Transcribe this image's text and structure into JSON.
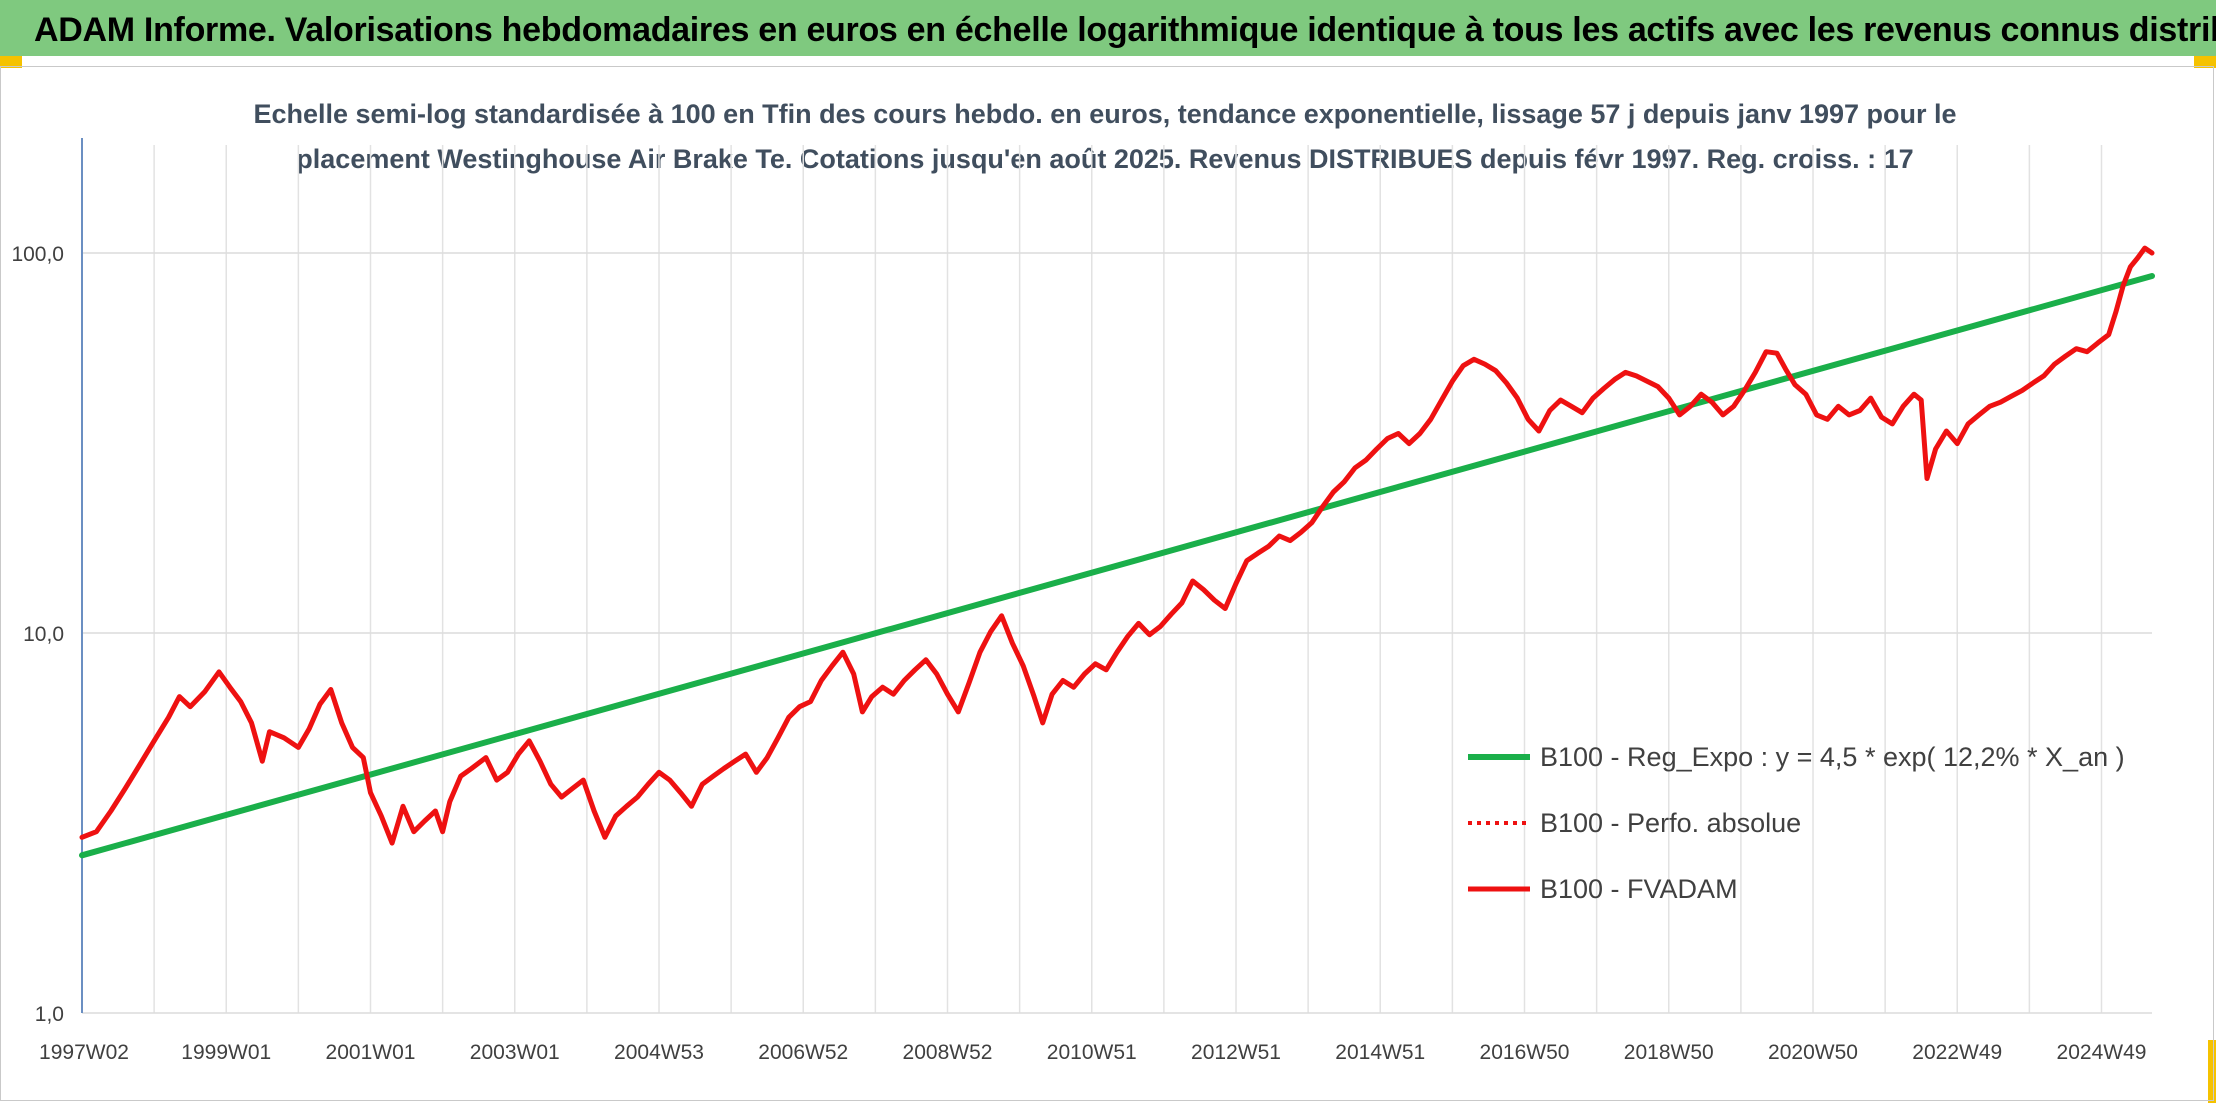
{
  "header": {
    "title": "ADAM Informe. Valorisations hebdomadaires en euros en échelle logarithmique identique à tous les actifs avec les revenus connus distribués"
  },
  "colors": {
    "header_band": "#7fc97f",
    "corner_accent": "#f5c200",
    "series_regression": "#1aaf4a",
    "series_fvadam": "#ee1111",
    "series_perfo": "#ee1111"
  },
  "chart_data": {
    "type": "line",
    "title": "Echelle semi-log standardisée à 100 en Tfin des cours hebdo. en euros, tendance exponentielle, lissage 57 j depuis janv 1997 pour le placement Westinghouse Air Brake Te. Cotations jusqu'en août 2025. Revenus DISTRIBUES depuis févr 1997. Reg. croiss. : 17",
    "y_scale": "log",
    "ylim": [
      1,
      200
    ],
    "xlim": [
      1997.0,
      2025.7
    ],
    "y_ticks": [
      "1,0",
      "10,0",
      "100,0"
    ],
    "y_tick_values": [
      1,
      10,
      100
    ],
    "x_ticks": [
      "1997W02",
      "1999W01",
      "2001W01",
      "2003W01",
      "2004W53",
      "2006W52",
      "2008W52",
      "2010W51",
      "2012W51",
      "2014W51",
      "2016W50",
      "2018W50",
      "2020W50",
      "2022W49",
      "2024W49"
    ],
    "x_tick_values": [
      1997.0,
      1999.0,
      2001.0,
      2003.0,
      2005.0,
      2007.0,
      2009.0,
      2011.0,
      2013.0,
      2015.0,
      2017.0,
      2019.0,
      2021.0,
      2023.0,
      2025.0
    ],
    "grid": true,
    "legend_position": "bottom-right",
    "series": [
      {
        "name": "B100 - Reg_Expo : y = 4,5 * exp( 12,2% *  X_an )",
        "style": "solid-green",
        "points": [
          [
            1997.0,
            2.6
          ],
          [
            2025.7,
            87
          ]
        ]
      },
      {
        "name": "B100 - Perfo. absolue",
        "style": "dotted-red",
        "points": []
      },
      {
        "name": "B100 - FVADAM",
        "style": "solid-red",
        "points": [
          [
            1997.0,
            2.9
          ],
          [
            1997.2,
            3.0
          ],
          [
            1997.4,
            3.4
          ],
          [
            1997.6,
            3.9
          ],
          [
            1997.8,
            4.5
          ],
          [
            1998.0,
            5.2
          ],
          [
            1998.2,
            6.0
          ],
          [
            1998.35,
            6.8
          ],
          [
            1998.5,
            6.4
          ],
          [
            1998.7,
            7.0
          ],
          [
            1998.9,
            7.9
          ],
          [
            1999.05,
            7.2
          ],
          [
            1999.2,
            6.6
          ],
          [
            1999.35,
            5.8
          ],
          [
            1999.5,
            4.6
          ],
          [
            1999.6,
            5.5
          ],
          [
            1999.8,
            5.3
          ],
          [
            2000.0,
            5.0
          ],
          [
            2000.15,
            5.6
          ],
          [
            2000.3,
            6.5
          ],
          [
            2000.45,
            7.1
          ],
          [
            2000.6,
            5.8
          ],
          [
            2000.75,
            5.0
          ],
          [
            2000.9,
            4.7
          ],
          [
            2001.0,
            3.8
          ],
          [
            2001.15,
            3.3
          ],
          [
            2001.3,
            2.8
          ],
          [
            2001.45,
            3.5
          ],
          [
            2001.6,
            3.0
          ],
          [
            2001.75,
            3.2
          ],
          [
            2001.9,
            3.4
          ],
          [
            2002.0,
            3.0
          ],
          [
            2002.1,
            3.6
          ],
          [
            2002.25,
            4.2
          ],
          [
            2002.4,
            4.4
          ],
          [
            2002.6,
            4.7
          ],
          [
            2002.75,
            4.1
          ],
          [
            2002.9,
            4.3
          ],
          [
            2003.05,
            4.8
          ],
          [
            2003.2,
            5.2
          ],
          [
            2003.35,
            4.6
          ],
          [
            2003.5,
            4.0
          ],
          [
            2003.65,
            3.7
          ],
          [
            2003.8,
            3.9
          ],
          [
            2003.95,
            4.1
          ],
          [
            2004.1,
            3.4
          ],
          [
            2004.25,
            2.9
          ],
          [
            2004.4,
            3.3
          ],
          [
            2004.55,
            3.5
          ],
          [
            2004.7,
            3.7
          ],
          [
            2004.85,
            4.0
          ],
          [
            2005.0,
            4.3
          ],
          [
            2005.15,
            4.1
          ],
          [
            2005.3,
            3.8
          ],
          [
            2005.45,
            3.5
          ],
          [
            2005.6,
            4.0
          ],
          [
            2005.75,
            4.2
          ],
          [
            2005.9,
            4.4
          ],
          [
            2006.05,
            4.6
          ],
          [
            2006.2,
            4.8
          ],
          [
            2006.35,
            4.3
          ],
          [
            2006.5,
            4.7
          ],
          [
            2006.65,
            5.3
          ],
          [
            2006.8,
            6.0
          ],
          [
            2006.95,
            6.4
          ],
          [
            2007.1,
            6.6
          ],
          [
            2007.25,
            7.5
          ],
          [
            2007.4,
            8.2
          ],
          [
            2007.55,
            8.9
          ],
          [
            2007.7,
            7.8
          ],
          [
            2007.82,
            6.2
          ],
          [
            2007.95,
            6.8
          ],
          [
            2008.1,
            7.2
          ],
          [
            2008.25,
            6.9
          ],
          [
            2008.4,
            7.5
          ],
          [
            2008.55,
            8.0
          ],
          [
            2008.7,
            8.5
          ],
          [
            2008.85,
            7.8
          ],
          [
            2009.0,
            6.9
          ],
          [
            2009.15,
            6.2
          ],
          [
            2009.3,
            7.4
          ],
          [
            2009.45,
            8.9
          ],
          [
            2009.6,
            10.1
          ],
          [
            2009.75,
            11.1
          ],
          [
            2009.9,
            9.4
          ],
          [
            2010.05,
            8.2
          ],
          [
            2010.2,
            6.8
          ],
          [
            2010.32,
            5.8
          ],
          [
            2010.45,
            6.9
          ],
          [
            2010.6,
            7.5
          ],
          [
            2010.75,
            7.2
          ],
          [
            2010.9,
            7.8
          ],
          [
            2011.05,
            8.3
          ],
          [
            2011.2,
            8.0
          ],
          [
            2011.35,
            8.9
          ],
          [
            2011.5,
            9.8
          ],
          [
            2011.65,
            10.6
          ],
          [
            2011.8,
            9.9
          ],
          [
            2011.95,
            10.4
          ],
          [
            2012.1,
            11.2
          ],
          [
            2012.25,
            12.0
          ],
          [
            2012.4,
            13.7
          ],
          [
            2012.55,
            13.0
          ],
          [
            2012.7,
            12.2
          ],
          [
            2012.85,
            11.6
          ],
          [
            2013.0,
            13.5
          ],
          [
            2013.15,
            15.5
          ],
          [
            2013.3,
            16.2
          ],
          [
            2013.45,
            16.9
          ],
          [
            2013.6,
            18.0
          ],
          [
            2013.75,
            17.5
          ],
          [
            2013.9,
            18.4
          ],
          [
            2014.05,
            19.5
          ],
          [
            2014.2,
            21.5
          ],
          [
            2014.35,
            23.5
          ],
          [
            2014.5,
            25.0
          ],
          [
            2014.65,
            27.2
          ],
          [
            2014.8,
            28.5
          ],
          [
            2014.95,
            30.5
          ],
          [
            2015.1,
            32.5
          ],
          [
            2015.25,
            33.5
          ],
          [
            2015.4,
            31.5
          ],
          [
            2015.55,
            33.5
          ],
          [
            2015.7,
            36.5
          ],
          [
            2015.85,
            41.0
          ],
          [
            2016.0,
            46.0
          ],
          [
            2016.15,
            50.5
          ],
          [
            2016.3,
            52.5
          ],
          [
            2016.45,
            51.0
          ],
          [
            2016.6,
            49.0
          ],
          [
            2016.75,
            45.5
          ],
          [
            2016.9,
            41.5
          ],
          [
            2017.05,
            36.5
          ],
          [
            2017.2,
            34.0
          ],
          [
            2017.35,
            38.5
          ],
          [
            2017.5,
            41.0
          ],
          [
            2017.65,
            39.5
          ],
          [
            2017.8,
            38.0
          ],
          [
            2017.95,
            41.5
          ],
          [
            2018.1,
            44.0
          ],
          [
            2018.25,
            46.5
          ],
          [
            2018.4,
            48.5
          ],
          [
            2018.55,
            47.5
          ],
          [
            2018.7,
            46.0
          ],
          [
            2018.85,
            44.5
          ],
          [
            2019.0,
            41.5
          ],
          [
            2019.15,
            37.5
          ],
          [
            2019.3,
            39.5
          ],
          [
            2019.45,
            42.5
          ],
          [
            2019.6,
            40.5
          ],
          [
            2019.75,
            37.5
          ],
          [
            2019.9,
            39.5
          ],
          [
            2020.05,
            43.5
          ],
          [
            2020.2,
            48.5
          ],
          [
            2020.35,
            55.0
          ],
          [
            2020.5,
            54.5
          ],
          [
            2020.62,
            49.5
          ],
          [
            2020.75,
            45.0
          ],
          [
            2020.9,
            42.5
          ],
          [
            2021.05,
            37.5
          ],
          [
            2021.2,
            36.5
          ],
          [
            2021.35,
            39.5
          ],
          [
            2021.5,
            37.5
          ],
          [
            2021.65,
            38.5
          ],
          [
            2021.8,
            41.5
          ],
          [
            2021.95,
            37.0
          ],
          [
            2022.1,
            35.5
          ],
          [
            2022.25,
            39.5
          ],
          [
            2022.4,
            42.5
          ],
          [
            2022.5,
            41.0
          ],
          [
            2022.58,
            25.5
          ],
          [
            2022.7,
            30.5
          ],
          [
            2022.85,
            34.0
          ],
          [
            2023.0,
            31.5
          ],
          [
            2023.15,
            35.5
          ],
          [
            2023.3,
            37.5
          ],
          [
            2023.45,
            39.5
          ],
          [
            2023.6,
            40.5
          ],
          [
            2023.75,
            42.0
          ],
          [
            2023.9,
            43.5
          ],
          [
            2024.05,
            45.5
          ],
          [
            2024.2,
            47.5
          ],
          [
            2024.35,
            51.0
          ],
          [
            2024.5,
            53.5
          ],
          [
            2024.65,
            56.0
          ],
          [
            2024.8,
            55.0
          ],
          [
            2024.95,
            58.0
          ],
          [
            2025.1,
            61.0
          ],
          [
            2025.2,
            70.0
          ],
          [
            2025.3,
            82.0
          ],
          [
            2025.4,
            92.0
          ],
          [
            2025.5,
            97.0
          ],
          [
            2025.6,
            103.0
          ],
          [
            2025.7,
            100.0
          ]
        ]
      }
    ]
  }
}
